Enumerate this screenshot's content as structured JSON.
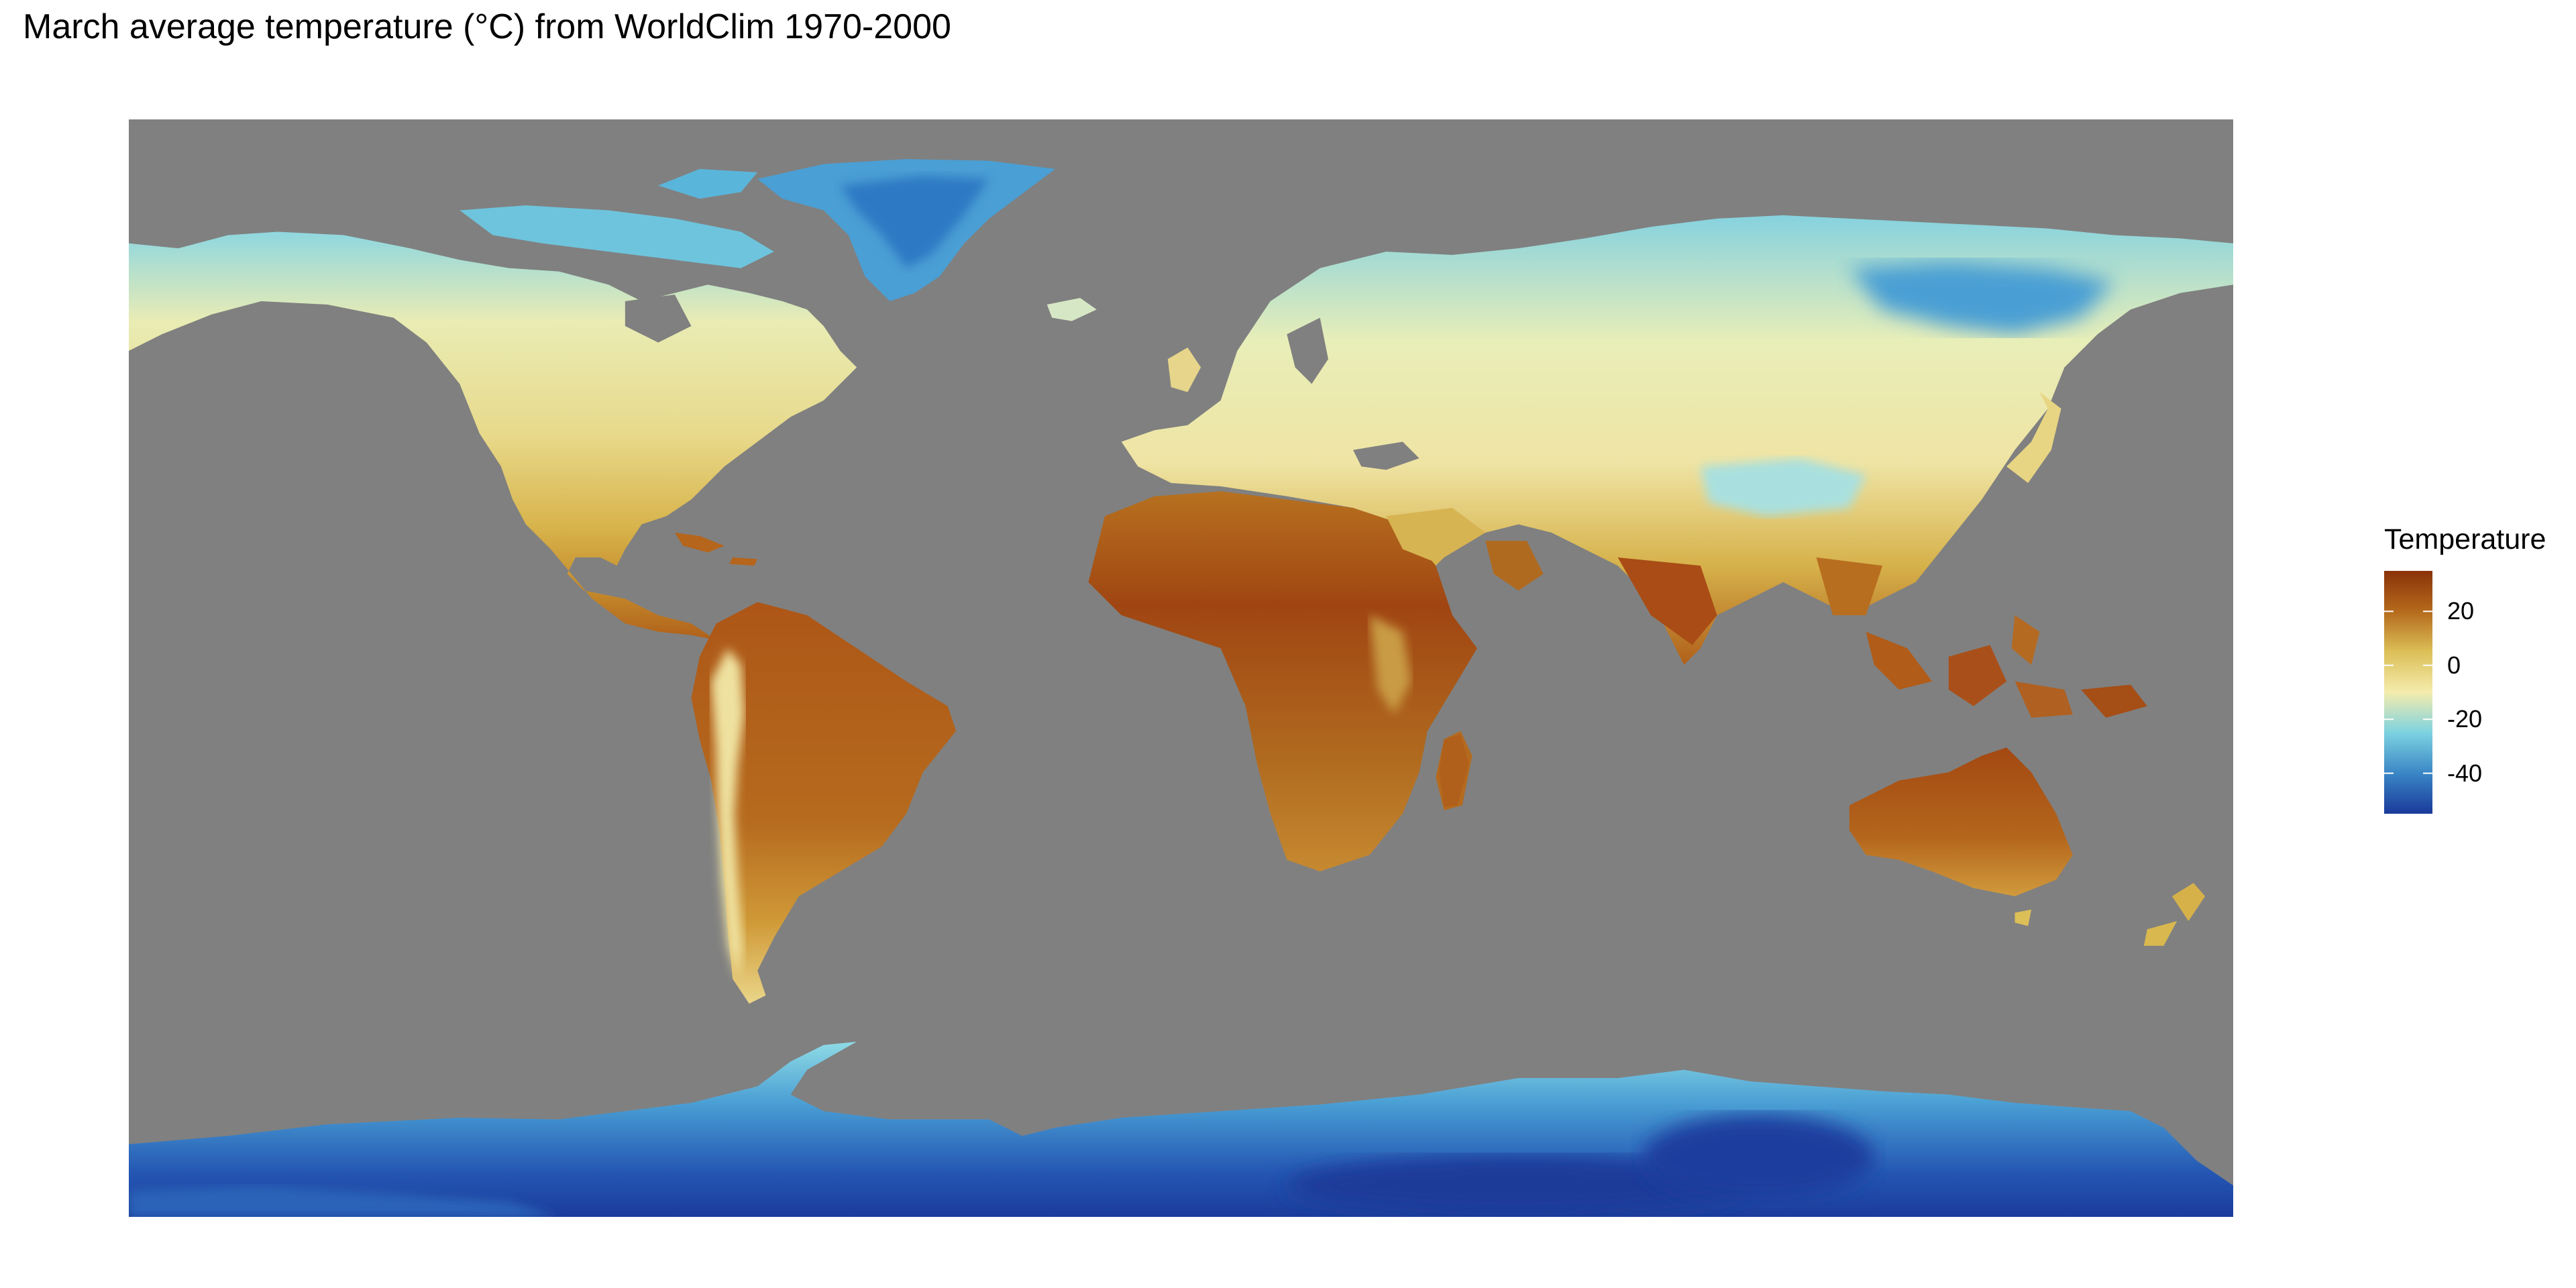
{
  "title": "March average temperature (°C) from WorldClim 1970-2000",
  "legend": {
    "title": "Temperature",
    "range": [
      -55,
      35
    ],
    "ticks": [
      20,
      0,
      -20,
      -40
    ],
    "tick_labels": [
      "20",
      "0",
      "-20",
      "-40"
    ]
  },
  "colors": {
    "ocean": "#808080",
    "scale": [
      "#1a3a9a",
      "#3a86c6",
      "#7dd2e0",
      "#f4ecad",
      "#dcbf57",
      "#b56a1c",
      "#8a3209"
    ]
  }
}
